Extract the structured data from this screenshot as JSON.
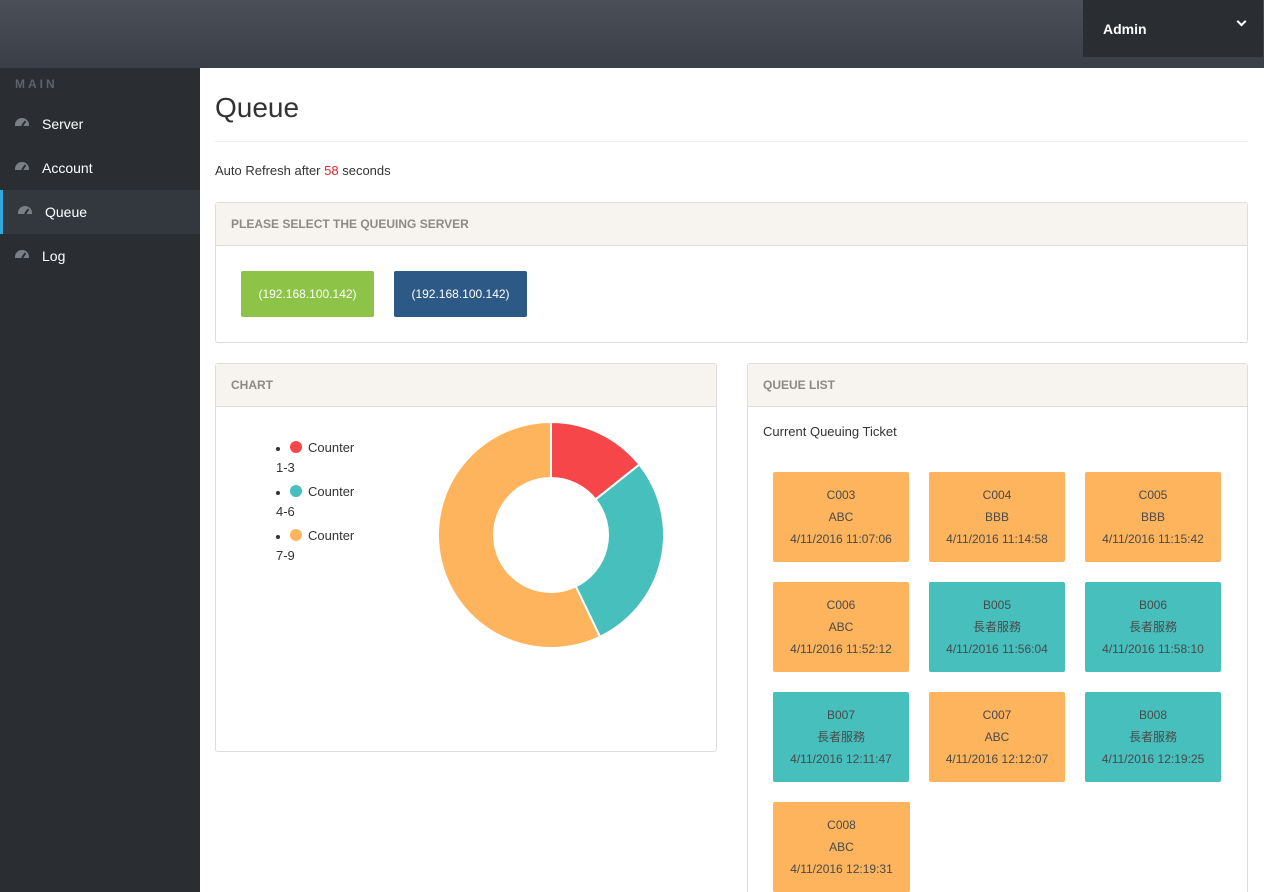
{
  "header": {
    "user_label": "Admin",
    "user_menu_icon": "chevron-down-icon"
  },
  "sidebar": {
    "section_label": "MAIN",
    "items": [
      {
        "label": "Server",
        "icon": "dashboard-icon",
        "active": false
      },
      {
        "label": "Account",
        "icon": "dashboard-icon",
        "active": false
      },
      {
        "label": "Queue",
        "icon": "dashboard-icon",
        "active": true
      },
      {
        "label": "Log",
        "icon": "dashboard-icon",
        "active": false
      }
    ]
  },
  "page": {
    "title": "Queue",
    "refresh_prefix": "Auto Refresh after",
    "refresh_seconds": "58",
    "refresh_suffix": "seconds"
  },
  "server_panel": {
    "heading": "PLEASE SELECT THE QUEUING SERVER",
    "servers": [
      {
        "label": "(192.168.100.142)",
        "color": "#8dc447"
      },
      {
        "label": "(192.168.100.142)",
        "color": "#2d5986"
      }
    ]
  },
  "chart_panel": {
    "heading": "CHART"
  },
  "chart_data": {
    "type": "pie",
    "categories": [
      "Counter 1-3",
      "Counter 4-6",
      "Counter 7-9"
    ],
    "legend_lines": [
      [
        "Counter",
        "1-3"
      ],
      [
        "Counter",
        "4-6"
      ],
      [
        "Counter",
        "7-9"
      ]
    ],
    "values": [
      2,
      4,
      8
    ],
    "colors": [
      "#f7464a",
      "#46bfbd",
      "#fdb45c"
    ],
    "donut": true,
    "legend_placement": "left",
    "title": ""
  },
  "queue_panel": {
    "heading": "QUEUE LIST",
    "subheading": "Current Queuing Ticket",
    "colors": {
      "C": "#fdb45c",
      "B": "#46bfbd"
    },
    "tickets": [
      {
        "id": "C003",
        "name": "ABC",
        "time": "4/11/2016 11:07:06",
        "kind": "C"
      },
      {
        "id": "C004",
        "name": "BBB",
        "time": "4/11/2016 11:14:58",
        "kind": "C"
      },
      {
        "id": "C005",
        "name": "BBB",
        "time": "4/11/2016 11:15:42",
        "kind": "C"
      },
      {
        "id": "C006",
        "name": "ABC",
        "time": "4/11/2016 11:52:12",
        "kind": "C"
      },
      {
        "id": "B005",
        "name": "長者服務",
        "time": "4/11/2016 11:56:04",
        "kind": "B"
      },
      {
        "id": "B006",
        "name": "長者服務",
        "time": "4/11/2016 11:58:10",
        "kind": "B"
      },
      {
        "id": "B007",
        "name": "長者服務",
        "time": "4/11/2016 12:11:47",
        "kind": "B"
      },
      {
        "id": "C007",
        "name": "ABC",
        "time": "4/11/2016 12:12:07",
        "kind": "C"
      },
      {
        "id": "B008",
        "name": "長者服務",
        "time": "4/11/2016 12:19:25",
        "kind": "B"
      },
      {
        "id": "C008",
        "name": "ABC",
        "time": "4/11/2016 12:19:31",
        "kind": "C"
      }
    ]
  }
}
